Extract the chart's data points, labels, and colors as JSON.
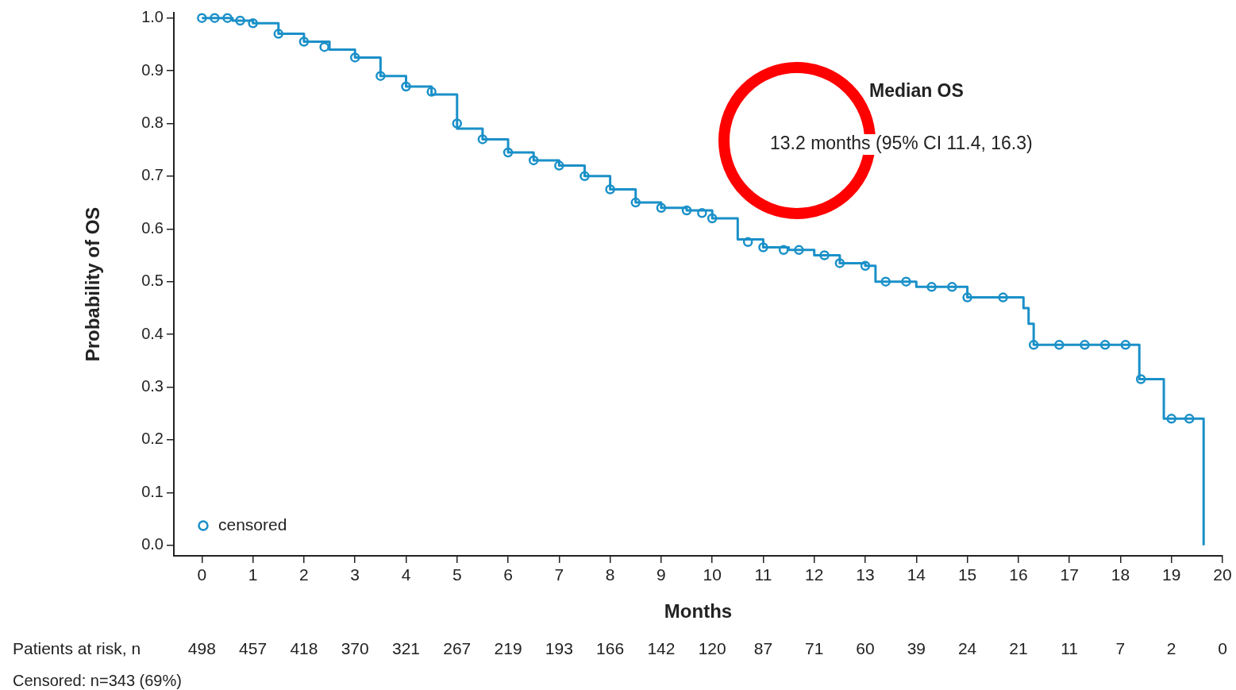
{
  "chart_data": {
    "type": "step",
    "xlabel": "Months",
    "ylabel": "Probability of OS",
    "xlim": [
      -0.55,
      20
    ],
    "xticks": [
      0,
      1,
      2,
      3,
      4,
      5,
      6,
      7,
      8,
      9,
      10,
      11,
      12,
      13,
      14,
      15,
      16,
      17,
      18,
      19,
      20
    ],
    "ylim": [
      -0.02,
      1.01
    ],
    "yticks": [
      {
        "value": 0,
        "label": "0.0"
      },
      {
        "value": 0.1,
        "label": "0.1"
      },
      {
        "value": 0.2,
        "label": "0.2"
      },
      {
        "value": 0.3,
        "label": "0.3"
      },
      {
        "value": 0.4,
        "label": "0.4"
      },
      {
        "value": 0.5,
        "label": "0.5"
      },
      {
        "value": 0.6,
        "label": "0.6"
      },
      {
        "value": 0.7,
        "label": "0.7"
      },
      {
        "value": 0.8,
        "label": "0.8"
      },
      {
        "value": 0.9,
        "label": "0.9"
      },
      {
        "value": 1,
        "label": "1.0"
      }
    ],
    "legend": "bottom left",
    "series": [
      {
        "color": "#1a90c8",
        "x": [
          0,
          0.6,
          1,
          1.5,
          2,
          2.5,
          3,
          3.5,
          4,
          4.5,
          5,
          5.5,
          6,
          6.5,
          7,
          7.5,
          8,
          8.5,
          9,
          9.5,
          10,
          10.5,
          11,
          11.5,
          12,
          12.5,
          13,
          13.2,
          14,
          15,
          16.1,
          16.2,
          16.3,
          18.37,
          18.85,
          19.63
        ],
        "values": [
          1,
          0.995,
          0.99,
          0.97,
          0.955,
          0.94,
          0.925,
          0.89,
          0.87,
          0.855,
          0.79,
          0.77,
          0.745,
          0.73,
          0.72,
          0.7,
          0.675,
          0.65,
          0.64,
          0.635,
          0.62,
          0.58,
          0.565,
          0.56,
          0.55,
          0.535,
          0.53,
          0.5,
          0.49,
          0.47,
          0.45,
          0.42,
          0.38,
          0.315,
          0.24,
          0
        ]
      },
      {
        "type": "scatter",
        "name": "censored",
        "color": "#1a90c8",
        "marker": "circle",
        "x": [
          0,
          0.25,
          0.5,
          0.75,
          1,
          1.5,
          2,
          2.4,
          3,
          3.5,
          4,
          4.5,
          5,
          5.5,
          6,
          6.5,
          7,
          7.5,
          8,
          8.5,
          9,
          9.5,
          9.8,
          10,
          10.7,
          11,
          11.4,
          11.7,
          12.2,
          12.5,
          13,
          13.4,
          13.8,
          14.3,
          14.7,
          15,
          15.7,
          16.3,
          16.8,
          17.3,
          17.7,
          18.1,
          18.4,
          19,
          19.35
        ],
        "values": [
          1,
          1,
          1,
          0.995,
          0.99,
          0.97,
          0.955,
          0.945,
          0.925,
          0.89,
          0.87,
          0.86,
          0.8,
          0.77,
          0.745,
          0.73,
          0.72,
          0.7,
          0.675,
          0.65,
          0.64,
          0.635,
          0.63,
          0.62,
          0.575,
          0.565,
          0.56,
          0.56,
          0.55,
          0.535,
          0.53,
          0.5,
          0.5,
          0.49,
          0.49,
          0.47,
          0.47,
          0.38,
          0.38,
          0.38,
          0.38,
          0.38,
          0.315,
          0.24,
          0.24
        ]
      }
    ],
    "annotations": [
      "Median OS",
      "13.2 months (95% CI 11.4, 16.3)",
      "Patients at risk, n",
      "Censored: n=343 (69%)",
      "498",
      "457",
      "418",
      "370",
      "321",
      "267",
      "219",
      "193",
      "166",
      "142",
      "120",
      "87",
      "71",
      "60",
      "39",
      "24",
      "21",
      "11",
      "7",
      "2",
      "0"
    ]
  }
}
